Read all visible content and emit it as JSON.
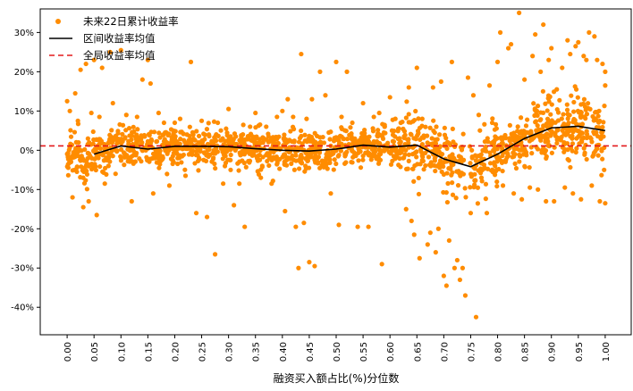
{
  "chart_data": {
    "type": "scatter",
    "xlabel": "融资买入额占比(%)分位数",
    "ylabel": "",
    "xlim": [
      -0.05,
      1.05
    ],
    "ylim": [
      -0.47,
      0.36
    ],
    "x_ticks": [
      "0.00",
      "0.05",
      "0.10",
      "0.15",
      "0.20",
      "0.25",
      "0.30",
      "0.35",
      "0.40",
      "0.45",
      "0.50",
      "0.55",
      "0.60",
      "0.65",
      "0.70",
      "0.75",
      "0.80",
      "0.85",
      "0.90",
      "0.95",
      "1.00"
    ],
    "y_ticks": [
      "-40%",
      "-30%",
      "-20%",
      "-10%",
      "0%",
      "10%",
      "20%",
      "30%"
    ],
    "y_tick_values": [
      -0.4,
      -0.3,
      -0.2,
      -0.1,
      0,
      0.1,
      0.2,
      0.3
    ],
    "legend": {
      "placement": "top-left",
      "entries": [
        "未来22日累计收益率",
        "区间收益率均值",
        "全局收益率均值"
      ]
    },
    "series": [
      {
        "name": "区间收益率均值",
        "kind": "line",
        "color": "#000000",
        "x": [
          0.05,
          0.1,
          0.15,
          0.2,
          0.25,
          0.3,
          0.35,
          0.4,
          0.45,
          0.5,
          0.55,
          0.6,
          0.65,
          0.7,
          0.75,
          0.8,
          0.85,
          0.9,
          0.95,
          1.0
        ],
        "y": [
          -0.01,
          0.011,
          0.003,
          0.01,
          0.01,
          0.009,
          0.004,
          0.0,
          -0.002,
          0.003,
          0.013,
          0.008,
          0.013,
          -0.022,
          -0.042,
          -0.01,
          0.03,
          0.057,
          0.061,
          0.05
        ]
      },
      {
        "name": "全局收益率均值",
        "kind": "hline",
        "color": "#e31a1c",
        "y": 0.011
      },
      {
        "name": "未来22日累计收益率",
        "kind": "scatter",
        "color": "#ff8c00",
        "points": [
          [
            0.0,
            0.125
          ],
          [
            0.005,
            0.1
          ],
          [
            0.01,
            -0.12
          ],
          [
            0.015,
            0.145
          ],
          [
            0.02,
            0.075
          ],
          [
            0.025,
            0.205
          ],
          [
            0.03,
            -0.145
          ],
          [
            0.035,
            0.22
          ],
          [
            0.04,
            -0.13
          ],
          [
            0.045,
            0.095
          ],
          [
            0.05,
            0.23
          ],
          [
            0.055,
            -0.165
          ],
          [
            0.06,
            0.085
          ],
          [
            0.065,
            0.21
          ],
          [
            0.07,
            -0.085
          ],
          [
            0.08,
            0.25
          ],
          [
            0.085,
            0.12
          ],
          [
            0.09,
            -0.06
          ],
          [
            0.1,
            0.255
          ],
          [
            0.11,
            0.09
          ],
          [
            0.12,
            -0.13
          ],
          [
            0.13,
            0.085
          ],
          [
            0.14,
            0.18
          ],
          [
            0.15,
            0.23
          ],
          [
            0.155,
            0.17
          ],
          [
            0.16,
            -0.11
          ],
          [
            0.17,
            0.095
          ],
          [
            0.18,
            0.07
          ],
          [
            0.19,
            -0.09
          ],
          [
            0.2,
            0.07
          ],
          [
            0.21,
            0.08
          ],
          [
            0.22,
            -0.065
          ],
          [
            0.23,
            0.225
          ],
          [
            0.24,
            -0.16
          ],
          [
            0.25,
            0.075
          ],
          [
            0.26,
            -0.17
          ],
          [
            0.275,
            -0.265
          ],
          [
            0.28,
            0.07
          ],
          [
            0.29,
            -0.085
          ],
          [
            0.3,
            0.105
          ],
          [
            0.31,
            -0.14
          ],
          [
            0.32,
            -0.085
          ],
          [
            0.33,
            -0.195
          ],
          [
            0.34,
            0.06
          ],
          [
            0.35,
            0.095
          ],
          [
            0.36,
            -0.07
          ],
          [
            0.37,
            0.06
          ],
          [
            0.38,
            -0.085
          ],
          [
            0.39,
            0.085
          ],
          [
            0.4,
            0.1
          ],
          [
            0.405,
            -0.155
          ],
          [
            0.41,
            0.13
          ],
          [
            0.42,
            0.085
          ],
          [
            0.425,
            -0.195
          ],
          [
            0.43,
            -0.3
          ],
          [
            0.435,
            0.245
          ],
          [
            0.44,
            -0.185
          ],
          [
            0.445,
            0.08
          ],
          [
            0.45,
            -0.285
          ],
          [
            0.455,
            0.13
          ],
          [
            0.46,
            -0.295
          ],
          [
            0.47,
            0.2
          ],
          [
            0.48,
            0.14
          ],
          [
            0.49,
            -0.11
          ],
          [
            0.5,
            0.225
          ],
          [
            0.505,
            -0.19
          ],
          [
            0.51,
            0.085
          ],
          [
            0.52,
            0.2
          ],
          [
            0.53,
            0.07
          ],
          [
            0.54,
            -0.195
          ],
          [
            0.55,
            0.12
          ],
          [
            0.56,
            -0.195
          ],
          [
            0.57,
            0.085
          ],
          [
            0.58,
            0.095
          ],
          [
            0.585,
            -0.29
          ],
          [
            0.59,
            0.06
          ],
          [
            0.6,
            0.135
          ],
          [
            0.61,
            0.08
          ],
          [
            0.62,
            0.07
          ],
          [
            0.63,
            -0.15
          ],
          [
            0.635,
            0.16
          ],
          [
            0.64,
            -0.18
          ],
          [
            0.645,
            -0.215
          ],
          [
            0.65,
            0.21
          ],
          [
            0.655,
            -0.275
          ],
          [
            0.66,
            0.08
          ],
          [
            0.67,
            -0.24
          ],
          [
            0.675,
            -0.21
          ],
          [
            0.68,
            0.16
          ],
          [
            0.685,
            -0.26
          ],
          [
            0.69,
            -0.2
          ],
          [
            0.695,
            0.175
          ],
          [
            0.7,
            -0.32
          ],
          [
            0.705,
            -0.345
          ],
          [
            0.71,
            -0.23
          ],
          [
            0.715,
            0.225
          ],
          [
            0.72,
            -0.3
          ],
          [
            0.725,
            -0.28
          ],
          [
            0.73,
            -0.33
          ],
          [
            0.735,
            -0.3
          ],
          [
            0.74,
            -0.37
          ],
          [
            0.745,
            0.185
          ],
          [
            0.75,
            -0.16
          ],
          [
            0.755,
            0.14
          ],
          [
            0.76,
            -0.425
          ],
          [
            0.765,
            0.09
          ],
          [
            0.77,
            -0.07
          ],
          [
            0.78,
            -0.16
          ],
          [
            0.785,
            0.165
          ],
          [
            0.79,
            0.07
          ],
          [
            0.8,
            0.225
          ],
          [
            0.805,
            0.3
          ],
          [
            0.81,
            -0.09
          ],
          [
            0.82,
            0.26
          ],
          [
            0.825,
            0.27
          ],
          [
            0.83,
            -0.11
          ],
          [
            0.84,
            0.35
          ],
          [
            0.845,
            -0.125
          ],
          [
            0.85,
            0.18
          ],
          [
            0.86,
            -0.095
          ],
          [
            0.865,
            0.24
          ],
          [
            0.87,
            0.295
          ],
          [
            0.875,
            -0.1
          ],
          [
            0.88,
            0.2
          ],
          [
            0.885,
            0.32
          ],
          [
            0.89,
            -0.13
          ],
          [
            0.895,
            0.23
          ],
          [
            0.9,
            0.26
          ],
          [
            0.905,
            -0.13
          ],
          [
            0.91,
            0.155
          ],
          [
            0.92,
            0.21
          ],
          [
            0.925,
            -0.095
          ],
          [
            0.93,
            0.28
          ],
          [
            0.935,
            0.245
          ],
          [
            0.94,
            -0.11
          ],
          [
            0.945,
            0.265
          ],
          [
            0.95,
            0.275
          ],
          [
            0.955,
            -0.125
          ],
          [
            0.96,
            0.24
          ],
          [
            0.965,
            0.23
          ],
          [
            0.97,
            0.3
          ],
          [
            0.975,
            -0.09
          ],
          [
            0.98,
            0.29
          ],
          [
            0.985,
            0.23
          ],
          [
            0.99,
            -0.13
          ],
          [
            0.995,
            0.22
          ],
          [
            1.0,
            0.2
          ],
          [
            1.0,
            -0.135
          ],
          [
            1.0,
            0.165
          ],
          [
            0.998,
            -0.05
          ]
        ]
      }
    ]
  }
}
